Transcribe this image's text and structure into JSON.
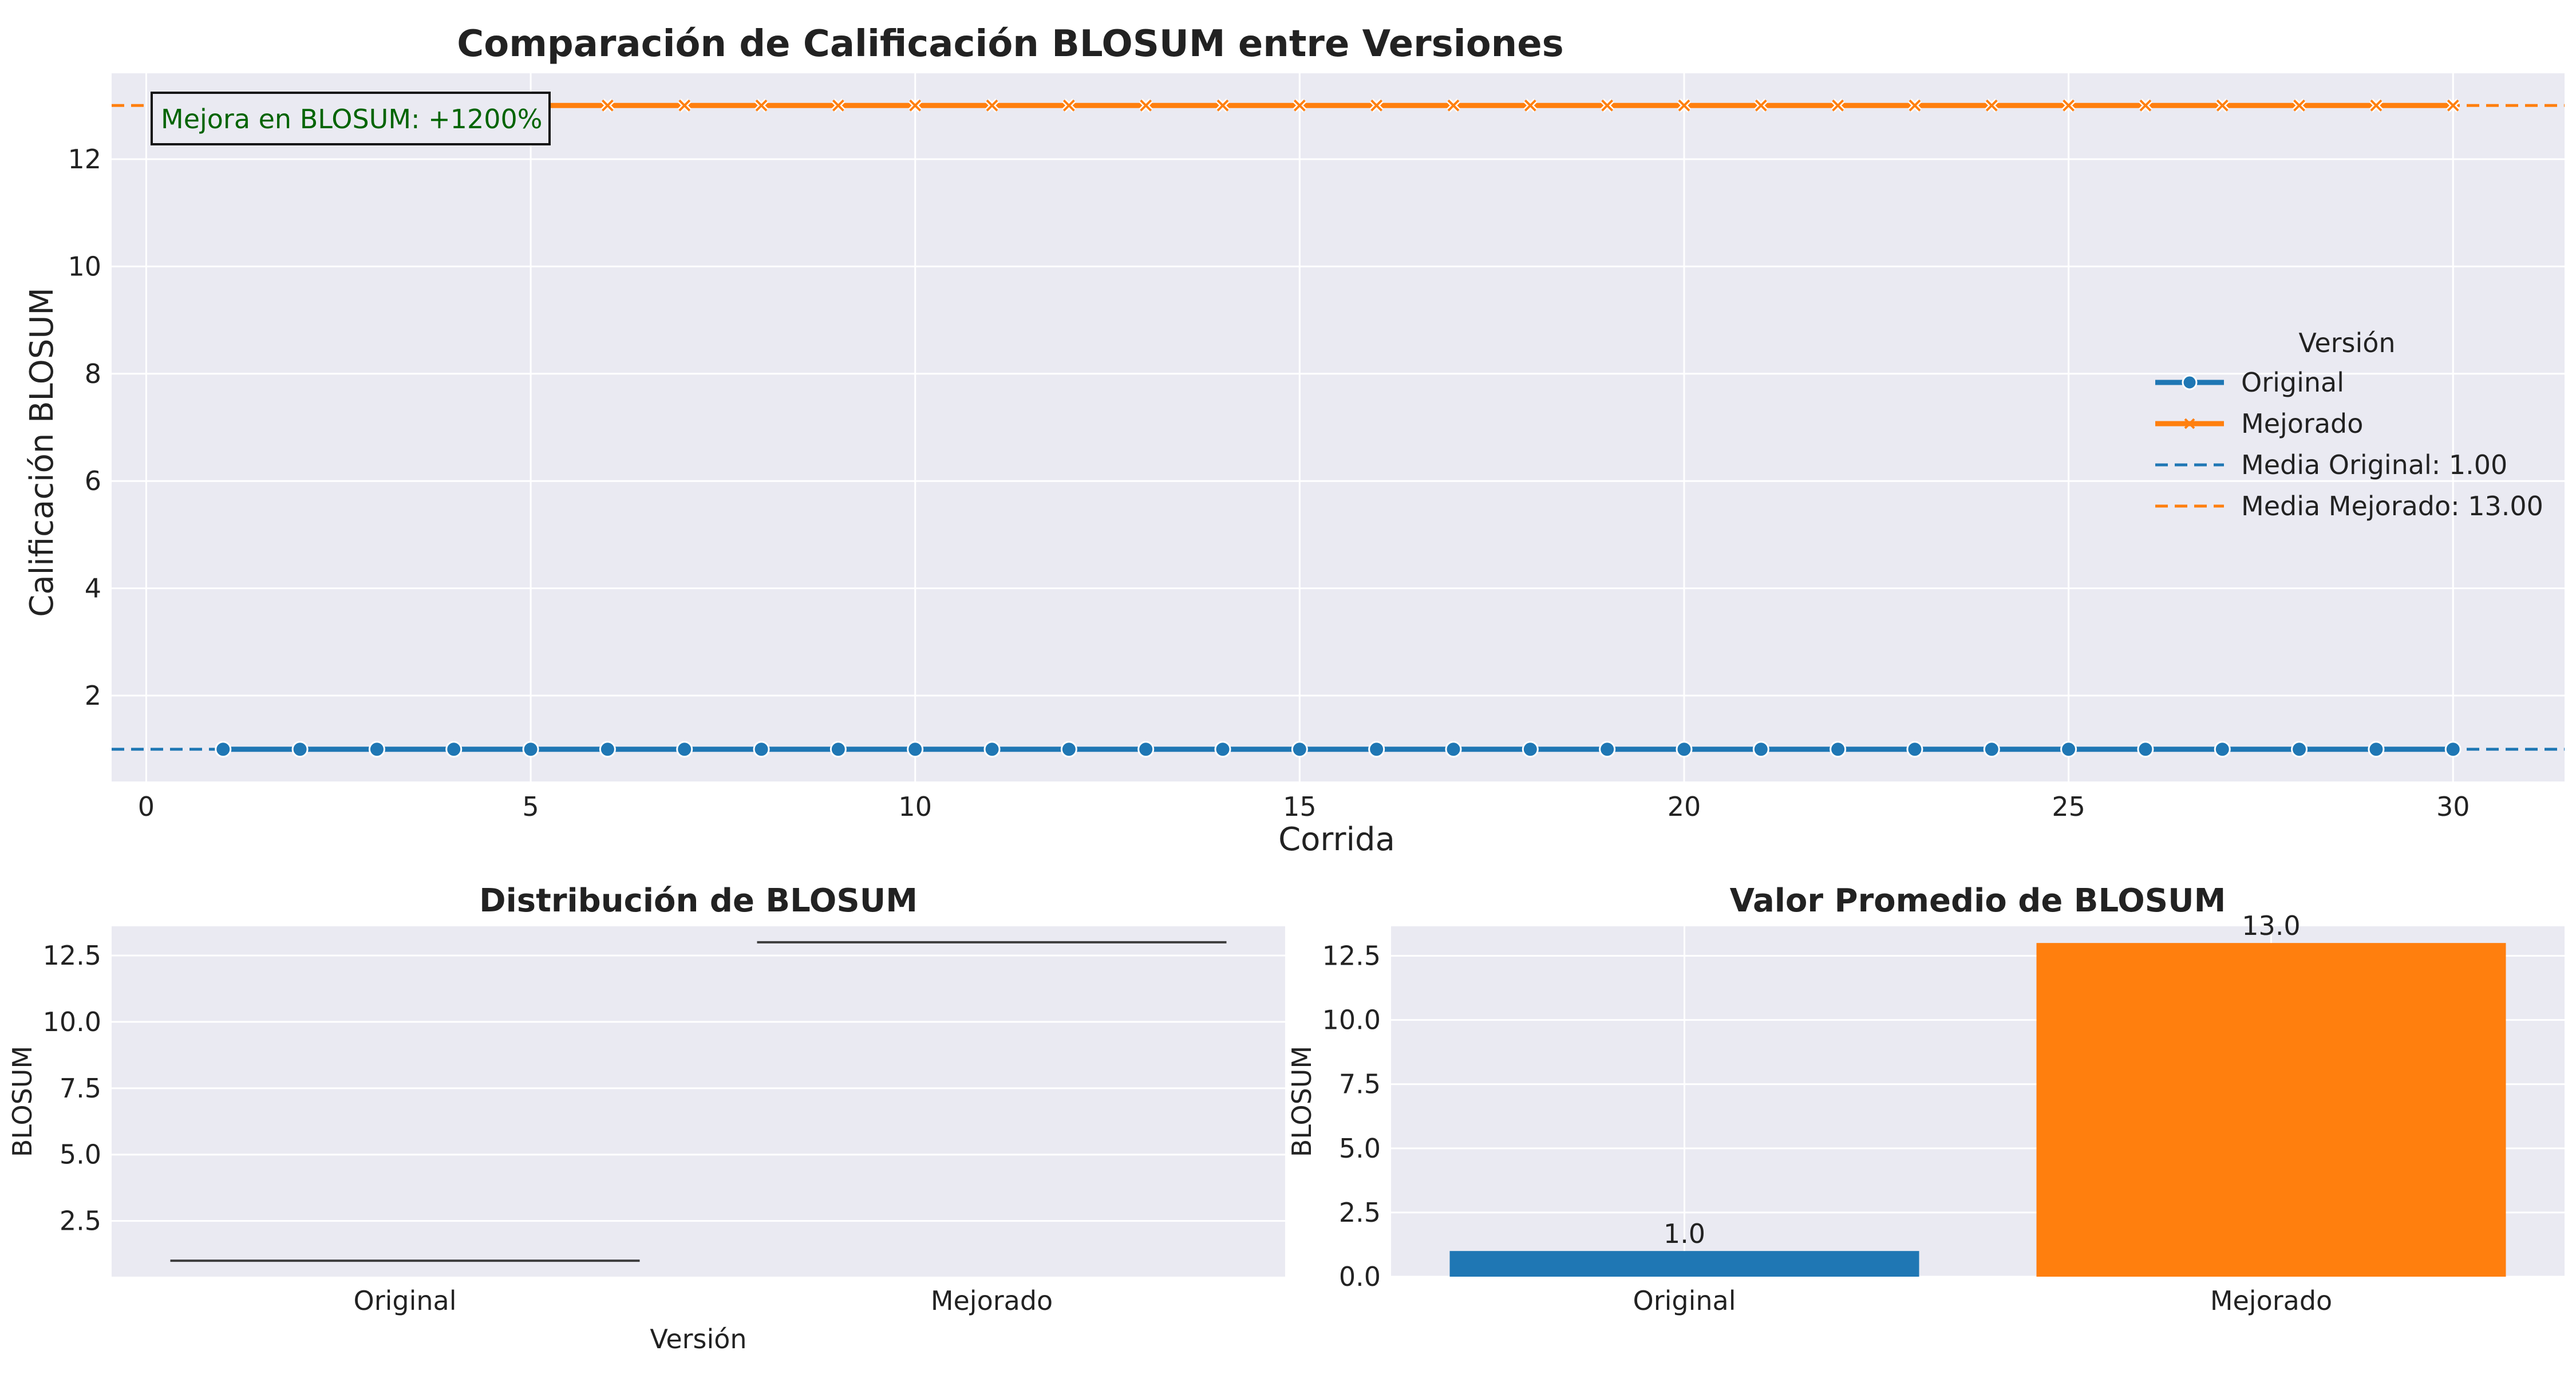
{
  "colors": {
    "original": "#1f77b4",
    "mejorado": "#ff7f0e",
    "panel_bg": "#eaeaf2",
    "grid": "#ffffff",
    "annotation_text": "#006400"
  },
  "chart_data": [
    {
      "type": "line",
      "title": "Comparación de Calificación BLOSUM entre Versiones",
      "xlabel": "Corrida",
      "ylabel": "Calificación BLOSUM",
      "xlim": [
        -0.45,
        31.45
      ],
      "ylim": [
        0.4,
        13.6
      ],
      "xticks": [
        0,
        5,
        10,
        15,
        20,
        25,
        30
      ],
      "xtick_labels": [
        "0",
        "5",
        "10",
        "15",
        "20",
        "25",
        "30"
      ],
      "yticks": [
        2,
        4,
        6,
        8,
        10,
        12
      ],
      "ytick_labels": [
        "2",
        "4",
        "6",
        "8",
        "10",
        "12"
      ],
      "grid": true,
      "x": [
        1,
        2,
        3,
        4,
        5,
        6,
        7,
        8,
        9,
        10,
        11,
        12,
        13,
        14,
        15,
        16,
        17,
        18,
        19,
        20,
        21,
        22,
        23,
        24,
        25,
        26,
        27,
        28,
        29,
        30
      ],
      "series": [
        {
          "name": "Original",
          "marker": "circle",
          "color": "#1f77b4",
          "values": [
            1,
            1,
            1,
            1,
            1,
            1,
            1,
            1,
            1,
            1,
            1,
            1,
            1,
            1,
            1,
            1,
            1,
            1,
            1,
            1,
            1,
            1,
            1,
            1,
            1,
            1,
            1,
            1,
            1,
            1
          ]
        },
        {
          "name": "Mejorado",
          "marker": "x",
          "color": "#ff7f0e",
          "values": [
            13,
            13,
            13,
            13,
            13,
            13,
            13,
            13,
            13,
            13,
            13,
            13,
            13,
            13,
            13,
            13,
            13,
            13,
            13,
            13,
            13,
            13,
            13,
            13,
            13,
            13,
            13,
            13,
            13,
            13
          ]
        }
      ],
      "reference_lines": [
        {
          "name": "Media Original: 1.00",
          "y": 1.0,
          "style": "dashed",
          "color": "#1f77b4"
        },
        {
          "name": "Media Mejorado: 13.00",
          "y": 13.0,
          "style": "dashed",
          "color": "#ff7f0e"
        }
      ],
      "legend": {
        "title": "Versión",
        "placement": "center-right",
        "entries": [
          "Original",
          "Mejorado",
          "Media Original: 1.00",
          "Media Mejorado: 13.00"
        ]
      },
      "annotation": "Mejora en BLOSUM: +1200%"
    },
    {
      "type": "box",
      "title": "Distribución de BLOSUM",
      "xlabel": "Versión",
      "ylabel": "BLOSUM",
      "categories": [
        "Original",
        "Mejorado"
      ],
      "values": [
        1.0,
        13.0
      ],
      "ylim": [
        0.4,
        13.6
      ],
      "yticks": [
        2.5,
        5.0,
        7.5,
        10.0,
        12.5
      ],
      "ytick_labels": [
        "2.5",
        "5.0",
        "7.5",
        "10.0",
        "12.5"
      ],
      "grid": true
    },
    {
      "type": "bar",
      "title": "Valor Promedio de BLOSUM",
      "xlabel": "",
      "ylabel": "BLOSUM",
      "categories": [
        "Original",
        "Mejorado"
      ],
      "values": [
        1.0,
        13.0
      ],
      "value_labels": [
        "1.0",
        "13.0"
      ],
      "ylim": [
        0,
        13.65
      ],
      "yticks": [
        0.0,
        2.5,
        5.0,
        7.5,
        10.0,
        12.5
      ],
      "ytick_labels": [
        "0.0",
        "2.5",
        "5.0",
        "7.5",
        "10.0",
        "12.5"
      ],
      "grid": true
    }
  ]
}
